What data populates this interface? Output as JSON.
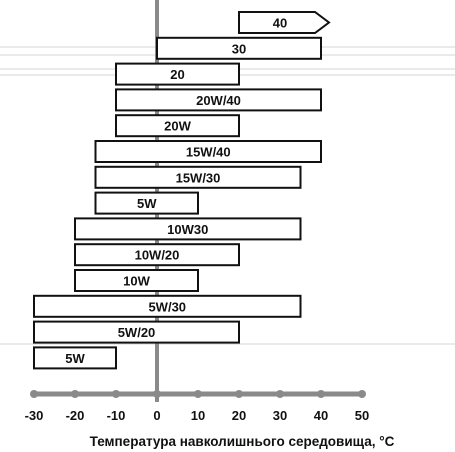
{
  "chart_data": {
    "type": "bar",
    "orientation": "horizontal-range",
    "xlabel": "Температура навколишнього середовища, °C",
    "xlim": [
      -30,
      50
    ],
    "x_ticks": [
      -30,
      -20,
      -10,
      0,
      10,
      20,
      30,
      40,
      50
    ],
    "x_tick_labels": [
      "-30",
      "-20",
      "-10",
      "0",
      "10",
      "20",
      "30",
      "40",
      "50"
    ],
    "grid": false,
    "bars": [
      {
        "label": "40",
        "min": 20,
        "max": 40,
        "open_end": true
      },
      {
        "label": "30",
        "min": 0,
        "max": 40
      },
      {
        "label": "20",
        "min": -10,
        "max": 20
      },
      {
        "label": "20W/40",
        "min": -10,
        "max": 40
      },
      {
        "label": "20W",
        "min": -10,
        "max": 20
      },
      {
        "label": "15W/40",
        "min": -15,
        "max": 40
      },
      {
        "label": "15W/30",
        "min": -15,
        "max": 35
      },
      {
        "label": "5W",
        "min": -15,
        "max": 10
      },
      {
        "label": "10W30",
        "min": -20,
        "max": 35
      },
      {
        "label": "10W/20",
        "min": -20,
        "max": 20
      },
      {
        "label": "10W",
        "min": -20,
        "max": 10
      },
      {
        "label": "5W/30",
        "min": -30,
        "max": 35
      },
      {
        "label": "5W/20",
        "min": -30,
        "max": 20
      },
      {
        "label": "5W",
        "min": -30,
        "max": -10
      }
    ],
    "colors": {
      "bar_fill": "#ffffff",
      "bar_stroke": "#111111",
      "axis": "#8a8a8a",
      "text": "#111111"
    }
  }
}
